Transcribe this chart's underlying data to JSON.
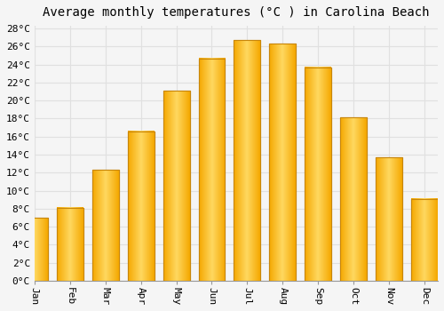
{
  "title": "Average monthly temperatures (°C ) in Carolina Beach",
  "months": [
    "Jan",
    "Feb",
    "Mar",
    "Apr",
    "May",
    "Jun",
    "Jul",
    "Aug",
    "Sep",
    "Oct",
    "Nov",
    "Dec"
  ],
  "values": [
    7.0,
    8.1,
    12.3,
    16.6,
    21.1,
    24.7,
    26.7,
    26.3,
    23.7,
    18.1,
    13.7,
    9.1
  ],
  "bar_color_center": "#FFD060",
  "bar_color_edge": "#F5A800",
  "bar_outline_color": "#C8860A",
  "ylim": [
    0,
    28
  ],
  "ytick_step": 2,
  "background_color": "#f5f5f5",
  "plot_bg_color": "#f5f5f5",
  "grid_color": "#e0e0e0",
  "title_fontsize": 10,
  "tick_fontsize": 8,
  "bar_width": 0.75
}
